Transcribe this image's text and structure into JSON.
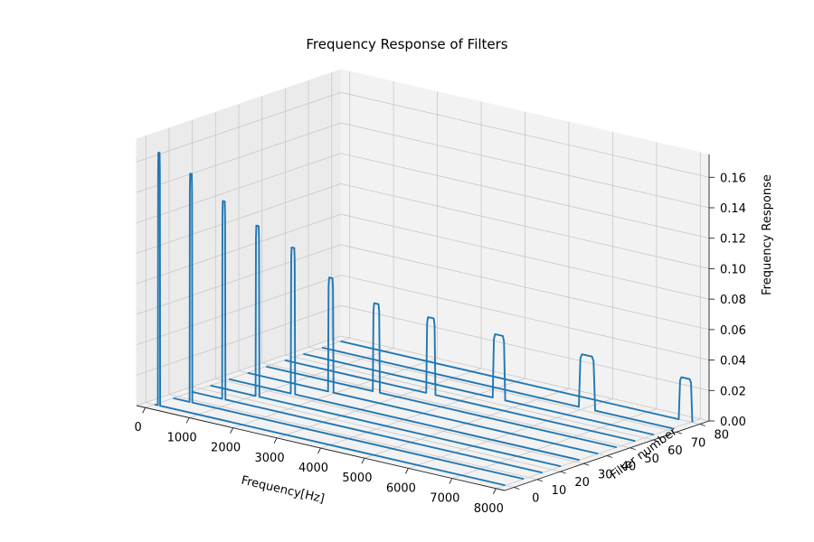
{
  "chart_data": {
    "type": "line",
    "projection": "3d",
    "title": "Frequency Response of Filters",
    "xlabel": "Frequency[Hz]",
    "ylabel": "Filter number",
    "zlabel": "Frequency Response",
    "xlim": [
      -200,
      8200
    ],
    "ylim": [
      -4,
      84
    ],
    "zlim": [
      0,
      0.175
    ],
    "xticks": [
      "0",
      "1000",
      "2000",
      "3000",
      "4000",
      "5000",
      "6000",
      "7000",
      "8000"
    ],
    "yticks": [
      "0",
      "10",
      "20",
      "30",
      "40",
      "50",
      "60",
      "70",
      "80"
    ],
    "zticks": [
      "0.00",
      "0.02",
      "0.04",
      "0.06",
      "0.08",
      "0.10",
      "0.12",
      "0.14",
      "0.16"
    ],
    "grid": true,
    "line_color": "#1f77b4",
    "series_shape": "single rectangular passband peak on zero baseline spanning 0-8000 Hz",
    "series": [
      {
        "filter_number": 0,
        "peak_start_hz": 80,
        "peak_end_hz": 120,
        "peak_value": 0.166
      },
      {
        "filter_number": 8,
        "peak_start_hz": 380,
        "peak_end_hz": 430,
        "peak_value": 0.15
      },
      {
        "filter_number": 16,
        "peak_start_hz": 700,
        "peak_end_hz": 760,
        "peak_value": 0.13
      },
      {
        "filter_number": 24,
        "peak_start_hz": 1040,
        "peak_end_hz": 1110,
        "peak_value": 0.112
      },
      {
        "filter_number": 32,
        "peak_start_hz": 1420,
        "peak_end_hz": 1500,
        "peak_value": 0.096
      },
      {
        "filter_number": 40,
        "peak_start_hz": 1850,
        "peak_end_hz": 1950,
        "peak_value": 0.075
      },
      {
        "filter_number": 48,
        "peak_start_hz": 2450,
        "peak_end_hz": 2580,
        "peak_value": 0.058
      },
      {
        "filter_number": 56,
        "peak_start_hz": 3250,
        "peak_end_hz": 3420,
        "peak_value": 0.05
      },
      {
        "filter_number": 64,
        "peak_start_hz": 4350,
        "peak_end_hz": 4580,
        "peak_value": 0.042
      },
      {
        "filter_number": 72,
        "peak_start_hz": 5900,
        "peak_end_hz": 6200,
        "peak_value": 0.035
      },
      {
        "filter_number": 80,
        "peak_start_hz": 7750,
        "peak_end_hz": 8000,
        "peak_value": 0.028
      }
    ]
  }
}
